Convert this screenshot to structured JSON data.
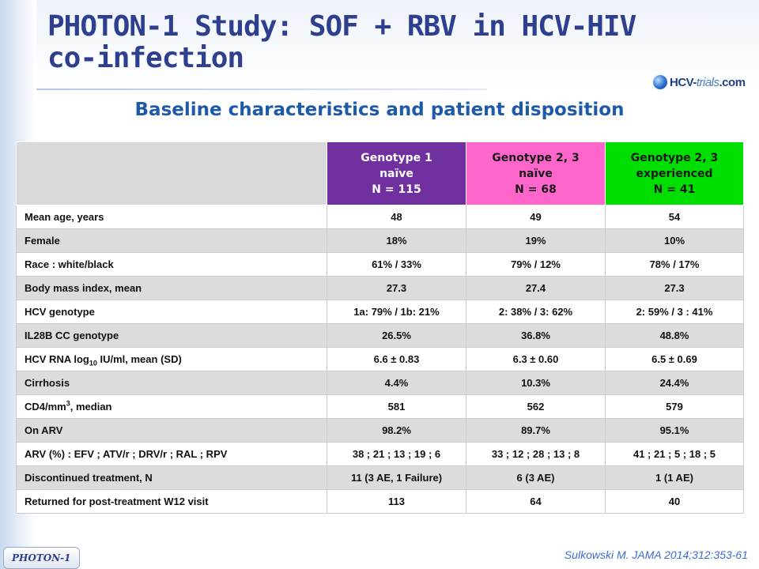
{
  "slide": {
    "title": "PHOTON-1 Study: SOF + RBV in HCV-HIV co-infection",
    "subtitle": "Baseline characteristics and patient disposition",
    "logo": {
      "prefix": "HCV-",
      "suffix": "trials",
      "domain": ".com",
      "icon": "globe-icon"
    },
    "footer_badge": "PHOTON-1",
    "citation": "Sulkowski M. JAMA 2014;312:353-61"
  },
  "colors": {
    "title": "#2e3f8f",
    "subtitle": "#1e5aa8",
    "genotype1_header": "#7030a0",
    "genotype23_naive_header": "#ff66cc",
    "genotype23_experienced_header": "#00dd00"
  },
  "table": {
    "columns": [
      {
        "line1": "Genotype 1",
        "line2": "naïve",
        "line3": "N = 115"
      },
      {
        "line1": "Genotype 2, 3",
        "line2": "naïve",
        "line3": "N = 68"
      },
      {
        "line1": "Genotype 2, 3",
        "line2": "experienced",
        "line3": "N = 41"
      }
    ],
    "rows": [
      {
        "label": "Mean age, years",
        "values": [
          "48",
          "49",
          "54"
        ]
      },
      {
        "label": "Female",
        "values": [
          "18%",
          "19%",
          "10%"
        ]
      },
      {
        "label": "Race : white/black",
        "values": [
          "61% / 33%",
          "79% / 12%",
          "78% / 17%"
        ]
      },
      {
        "label": "Body mass index, mean",
        "values": [
          "27.3",
          "27.4",
          "27.3"
        ]
      },
      {
        "label": "HCV genotype",
        "values": [
          "1a: 79% / 1b: 21%",
          "2: 38% / 3: 62%",
          "2: 59% / 3 : 41%"
        ]
      },
      {
        "label": "IL28B CC genotype",
        "values": [
          "26.5%",
          "36.8%",
          "48.8%"
        ]
      },
      {
        "label_pre": "HCV RNA log",
        "label_sub": "10",
        "label_post": " IU/ml, mean (SD)",
        "values": [
          "6.6 ± 0.83",
          "6.3 ± 0.60",
          "6.5 ± 0.69"
        ]
      },
      {
        "label": "Cirrhosis",
        "values": [
          "4.4%",
          "10.3%",
          "24.4%"
        ]
      },
      {
        "label_pre": "CD4/mm",
        "label_sup": "3",
        "label_post": ", median",
        "values": [
          "581",
          "562",
          "579"
        ]
      },
      {
        "label": "On ARV",
        "values": [
          "98.2%",
          "89.7%",
          "95.1%"
        ]
      },
      {
        "label": "ARV (%) : EFV ; ATV/r ; DRV/r ; RAL ; RPV",
        "values": [
          "38 ; 21 ; 13 ; 19 ; 6",
          "33 ; 12 ; 28 ; 13 ; 8",
          "41 ; 21 ; 5 ; 18 ; 5"
        ]
      },
      {
        "label": "Discontinued treatment, N",
        "values": [
          "11 (3 AE, 1 Failure)",
          "6 (3 AE)",
          "1 (1 AE)"
        ]
      },
      {
        "label": "Returned for post-treatment W12 visit",
        "values": [
          "113",
          "64",
          "40"
        ]
      }
    ]
  }
}
